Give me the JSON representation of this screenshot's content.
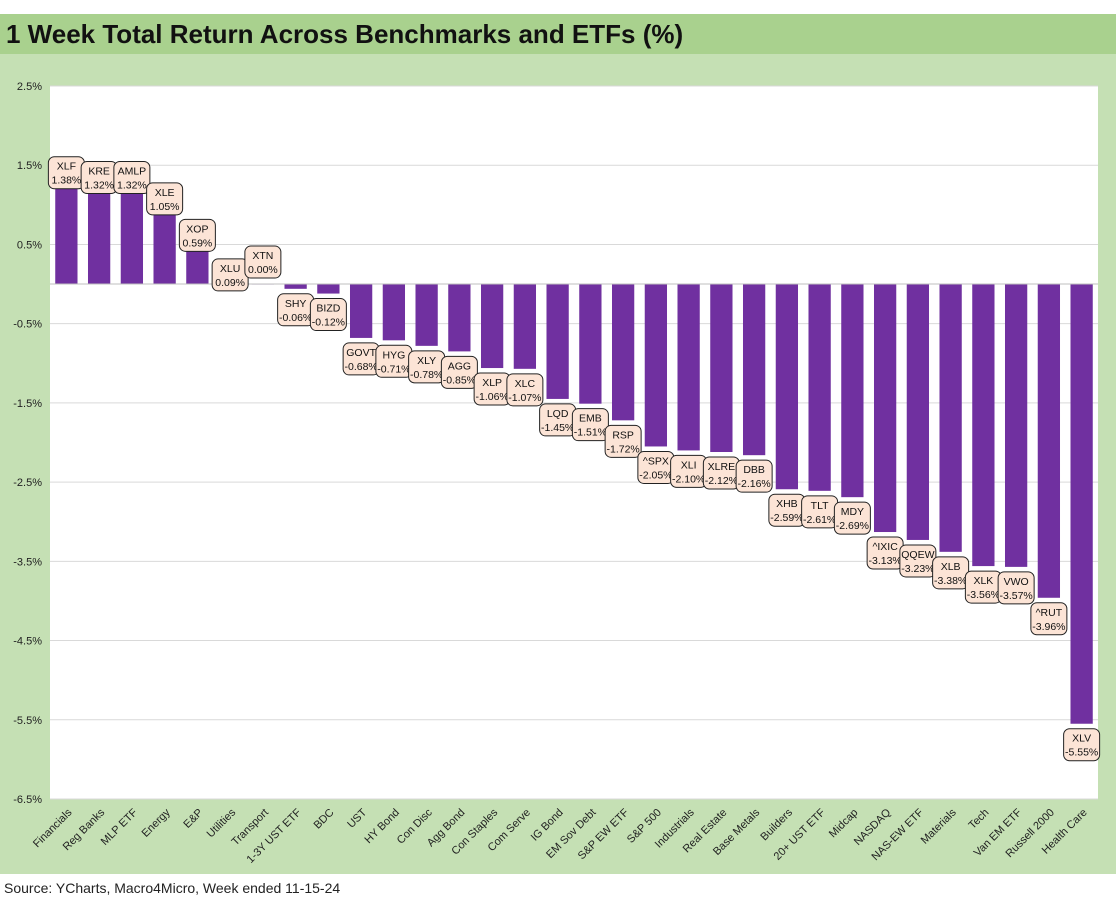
{
  "chart_data": {
    "type": "bar",
    "title": "1 Week Total Return Across Benchmarks and ETFs (%)",
    "source": "Source: YCharts, Macro4Micro, Week ended 11-15-24",
    "ylim": [
      -6.5,
      2.5
    ],
    "yticks": [
      "2.5%",
      "1.5%",
      "0.5%",
      "-0.5%",
      "-1.5%",
      "-2.5%",
      "-3.5%",
      "-4.5%",
      "-5.5%",
      "-6.5%"
    ],
    "ytick_values": [
      2.5,
      1.5,
      0.5,
      -0.5,
      -1.5,
      -2.5,
      -3.5,
      -4.5,
      -5.5,
      -6.5
    ],
    "grid": true,
    "bar_color": "#7030a0",
    "label_fill": "#fce4d6",
    "categories": [
      "Financials",
      "Reg Banks",
      "MLP ETF",
      "Energy",
      "E&P",
      "Utilities",
      "Transport",
      "1-3Y UST ETF",
      "BDC",
      "UST",
      "HY Bond",
      "Con Disc",
      "Agg Bond",
      "Con Staples",
      "Com Serve",
      "IG Bond",
      "EM Sov Debt",
      "S&P EW ETF",
      "S&P 500",
      "Industrials",
      "Real Estate",
      "Base Metals",
      "Builders",
      "20+ UST ETF",
      "Midcap",
      "NASDAQ",
      "NAS-EW ETF",
      "Materials",
      "Tech",
      "Van EM ETF",
      "Russell 2000",
      "Health Care"
    ],
    "tickers": [
      "XLF",
      "KRE",
      "AMLP",
      "XLE",
      "XOP",
      "XLU",
      "XTN",
      "SHY",
      "BIZD",
      "GOVT",
      "HYG",
      "XLY",
      "AGG",
      "XLP",
      "XLC",
      "LQD",
      "EMB",
      "RSP",
      "^SPX",
      "XLI",
      "XLRE",
      "DBB",
      "XHB",
      "TLT",
      "MDY",
      "^IXIC",
      "QQEW",
      "XLB",
      "XLK",
      "VWO",
      "^RUT",
      "XLV"
    ],
    "values": [
      1.38,
      1.32,
      1.32,
      1.05,
      0.59,
      0.09,
      0.0,
      -0.06,
      -0.12,
      -0.68,
      -0.71,
      -0.78,
      -0.85,
      -1.06,
      -1.07,
      -1.45,
      -1.51,
      -1.72,
      -2.05,
      -2.1,
      -2.12,
      -2.16,
      -2.59,
      -2.61,
      -2.69,
      -3.13,
      -3.23,
      -3.38,
      -3.56,
      -3.57,
      -3.96,
      -5.55
    ],
    "data_labels": [
      "1.38%",
      "1.32%",
      "1.32%",
      "1.05%",
      "0.59%",
      "0.09%",
      "0.00%",
      "-0.06%",
      "-0.12%",
      "-0.68%",
      "-0.71%",
      "-0.78%",
      "-0.85%",
      "-1.06%",
      "-1.07%",
      "-1.45%",
      "-1.51%",
      "-1.72%",
      "-2.05%",
      "-2.10%",
      "-2.12%",
      "-2.16%",
      "-2.59%",
      "-2.61%",
      "-2.69%",
      "-3.13%",
      "-3.23%",
      "-3.38%",
      "-3.56%",
      "-3.57%",
      "-3.96%",
      "-5.55%"
    ]
  }
}
